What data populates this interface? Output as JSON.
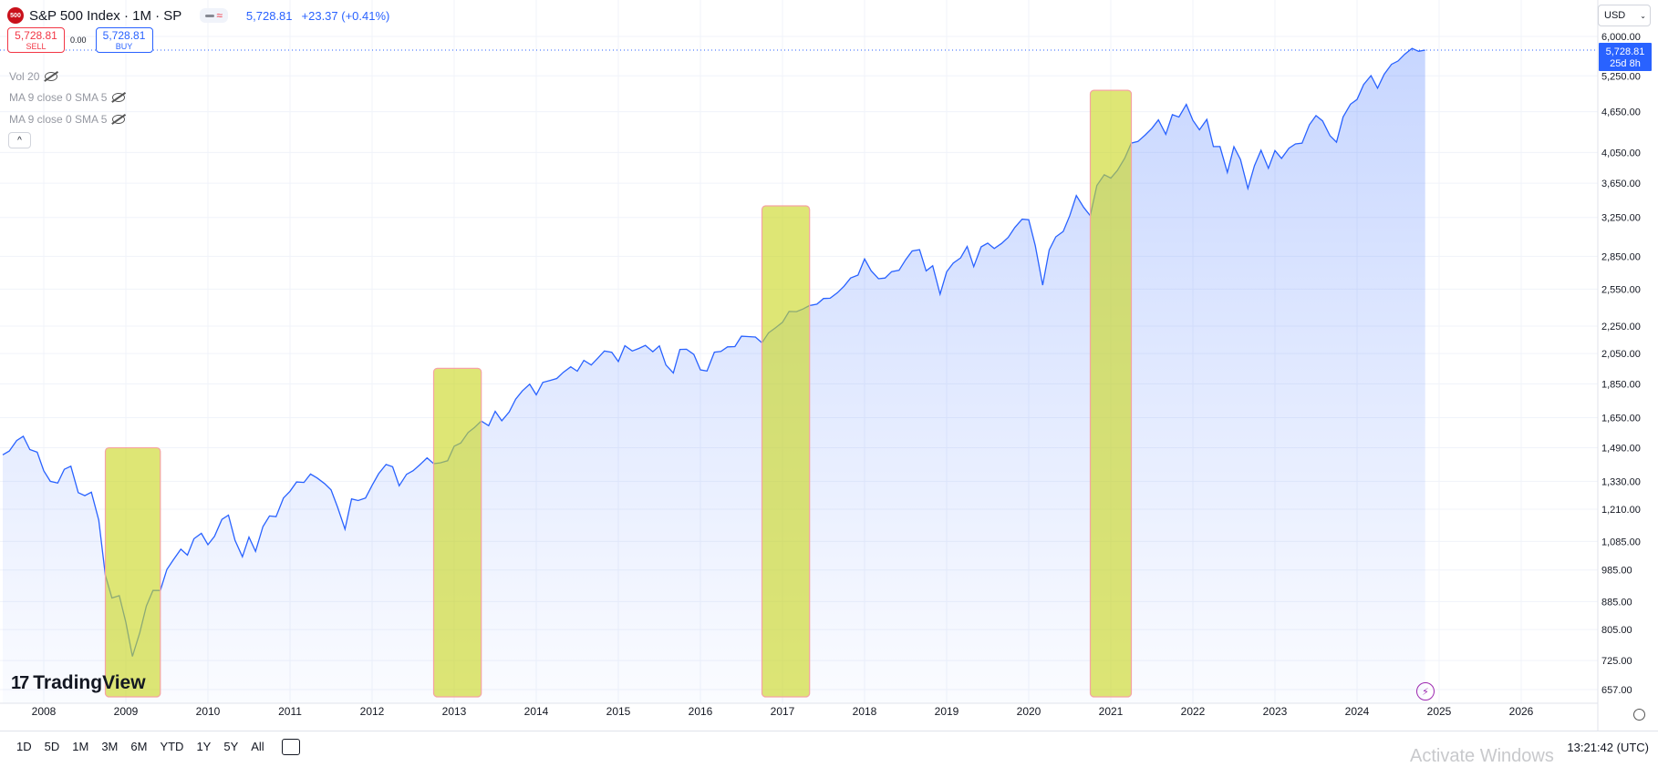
{
  "header": {
    "logo_badge": "500",
    "symbol_title": "S&P 500 Index · 1M · SP",
    "last_price": "5,728.81",
    "change": "+23.37 (+0.41%)"
  },
  "trade": {
    "sell_price": "5,728.81",
    "sell_label": "SELL",
    "spread": "0.00",
    "buy_price": "5,728.81",
    "buy_label": "BUY"
  },
  "indicators": [
    {
      "label": "Vol 20"
    },
    {
      "label": "MA 9 close 0 SMA 5"
    },
    {
      "label": "MA 9 close 0 SMA 5"
    }
  ],
  "currency": {
    "selected": "USD"
  },
  "price_label": {
    "price": "5,728.81",
    "countdown": "25d 8h"
  },
  "brand": {
    "name": "TradingView"
  },
  "bottom_bar": {
    "ranges": [
      "1D",
      "5D",
      "1M",
      "3M",
      "6M",
      "YTD",
      "1Y",
      "5Y",
      "All"
    ],
    "clock": "13:21:42 (UTC)"
  },
  "watermark": "Activate Windows",
  "colors": {
    "line": "#2962ff",
    "highlight": "#c9d620",
    "sell": "#f23645",
    "buy": "#2962ff"
  },
  "chart_data": {
    "type": "area",
    "y_scale": "log",
    "y_ticks": [
      657,
      725,
      805,
      885,
      985,
      1085,
      1210,
      1330,
      1490,
      1650,
      1850,
      2050,
      2250,
      2550,
      2850,
      3250,
      3650,
      4050,
      4650,
      5250,
      6000
    ],
    "y_tick_labels": [
      "657.00",
      "725.00",
      "805.00",
      "885.00",
      "985.00",
      "1,085.00",
      "1,210.00",
      "1,330.00",
      "1,490.00",
      "1,650.00",
      "1,850.00",
      "2,050.00",
      "2,250.00",
      "2,550.00",
      "2,850.00",
      "3,250.00",
      "3,650.00",
      "4,050.00",
      "4,650.00",
      "5,250.00",
      "6,000.00"
    ],
    "x_tick_labels": [
      "2008",
      "2009",
      "2010",
      "2011",
      "2012",
      "2013",
      "2014",
      "2015",
      "2016",
      "2017",
      "2018",
      "2019",
      "2020",
      "2021",
      "2022",
      "2023",
      "2024",
      "2025",
      "2026"
    ],
    "x_range": [
      2007.5,
      2026.9
    ],
    "series": [
      {
        "points": [
          [
            2007.5,
            1455
          ],
          [
            2007.58,
            1474
          ],
          [
            2007.67,
            1527
          ],
          [
            2007.75,
            1549
          ],
          [
            2007.83,
            1481
          ],
          [
            2007.92,
            1468
          ],
          [
            2008.0,
            1378
          ],
          [
            2008.08,
            1330
          ],
          [
            2008.17,
            1322
          ],
          [
            2008.25,
            1385
          ],
          [
            2008.33,
            1400
          ],
          [
            2008.42,
            1280
          ],
          [
            2008.5,
            1267
          ],
          [
            2008.58,
            1282
          ],
          [
            2008.67,
            1166
          ],
          [
            2008.75,
            968
          ],
          [
            2008.83,
            896
          ],
          [
            2008.92,
            903
          ],
          [
            2009.0,
            825
          ],
          [
            2009.08,
            735
          ],
          [
            2009.17,
            797
          ],
          [
            2009.25,
            872
          ],
          [
            2009.33,
            919
          ],
          [
            2009.42,
            919
          ],
          [
            2009.5,
            987
          ],
          [
            2009.58,
            1020
          ],
          [
            2009.67,
            1057
          ],
          [
            2009.75,
            1036
          ],
          [
            2009.83,
            1095
          ],
          [
            2009.92,
            1115
          ],
          [
            2010.0,
            1073
          ],
          [
            2010.08,
            1104
          ],
          [
            2010.17,
            1169
          ],
          [
            2010.25,
            1186
          ],
          [
            2010.33,
            1089
          ],
          [
            2010.42,
            1030
          ],
          [
            2010.5,
            1101
          ],
          [
            2010.58,
            1049
          ],
          [
            2010.67,
            1141
          ],
          [
            2010.75,
            1183
          ],
          [
            2010.83,
            1180
          ],
          [
            2010.92,
            1257
          ],
          [
            2011.0,
            1286
          ],
          [
            2011.08,
            1327
          ],
          [
            2011.17,
            1325
          ],
          [
            2011.25,
            1363
          ],
          [
            2011.33,
            1345
          ],
          [
            2011.42,
            1320
          ],
          [
            2011.5,
            1292
          ],
          [
            2011.58,
            1218
          ],
          [
            2011.67,
            1131
          ],
          [
            2011.75,
            1253
          ],
          [
            2011.83,
            1246
          ],
          [
            2011.92,
            1257
          ],
          [
            2012.0,
            1312
          ],
          [
            2012.08,
            1365
          ],
          [
            2012.17,
            1408
          ],
          [
            2012.25,
            1397
          ],
          [
            2012.33,
            1310
          ],
          [
            2012.42,
            1362
          ],
          [
            2012.5,
            1379
          ],
          [
            2012.58,
            1406
          ],
          [
            2012.67,
            1440
          ],
          [
            2012.75,
            1412
          ],
          [
            2012.83,
            1416
          ],
          [
            2012.92,
            1426
          ],
          [
            2013.0,
            1498
          ],
          [
            2013.08,
            1514
          ],
          [
            2013.17,
            1569
          ],
          [
            2013.25,
            1597
          ],
          [
            2013.33,
            1631
          ],
          [
            2013.42,
            1606
          ],
          [
            2013.5,
            1686
          ],
          [
            2013.58,
            1633
          ],
          [
            2013.67,
            1682
          ],
          [
            2013.75,
            1757
          ],
          [
            2013.83,
            1806
          ],
          [
            2013.92,
            1848
          ],
          [
            2014.0,
            1783
          ],
          [
            2014.08,
            1859
          ],
          [
            2014.17,
            1872
          ],
          [
            2014.25,
            1884
          ],
          [
            2014.33,
            1924
          ],
          [
            2014.42,
            1960
          ],
          [
            2014.5,
            1931
          ],
          [
            2014.58,
            2003
          ],
          [
            2014.67,
            1972
          ],
          [
            2014.75,
            2018
          ],
          [
            2014.83,
            2068
          ],
          [
            2014.92,
            2059
          ],
          [
            2015.0,
            1995
          ],
          [
            2015.08,
            2105
          ],
          [
            2015.17,
            2068
          ],
          [
            2015.25,
            2086
          ],
          [
            2015.33,
            2107
          ],
          [
            2015.42,
            2063
          ],
          [
            2015.5,
            2104
          ],
          [
            2015.58,
            1972
          ],
          [
            2015.67,
            1920
          ],
          [
            2015.75,
            2079
          ],
          [
            2015.83,
            2080
          ],
          [
            2015.92,
            2044
          ],
          [
            2016.0,
            1940
          ],
          [
            2016.08,
            1932
          ],
          [
            2016.17,
            2060
          ],
          [
            2016.25,
            2065
          ],
          [
            2016.33,
            2097
          ],
          [
            2016.42,
            2099
          ],
          [
            2016.5,
            2174
          ],
          [
            2016.58,
            2171
          ],
          [
            2016.67,
            2168
          ],
          [
            2016.75,
            2126
          ],
          [
            2016.83,
            2199
          ],
          [
            2016.92,
            2239
          ],
          [
            2017.0,
            2279
          ],
          [
            2017.08,
            2364
          ],
          [
            2017.17,
            2363
          ],
          [
            2017.25,
            2384
          ],
          [
            2017.33,
            2412
          ],
          [
            2017.42,
            2423
          ],
          [
            2017.5,
            2470
          ],
          [
            2017.58,
            2472
          ],
          [
            2017.67,
            2519
          ],
          [
            2017.75,
            2575
          ],
          [
            2017.83,
            2648
          ],
          [
            2017.92,
            2674
          ],
          [
            2018.0,
            2824
          ],
          [
            2018.08,
            2714
          ],
          [
            2018.17,
            2641
          ],
          [
            2018.25,
            2648
          ],
          [
            2018.33,
            2705
          ],
          [
            2018.42,
            2718
          ],
          [
            2018.5,
            2816
          ],
          [
            2018.58,
            2902
          ],
          [
            2018.67,
            2914
          ],
          [
            2018.75,
            2712
          ],
          [
            2018.83,
            2760
          ],
          [
            2018.92,
            2507
          ],
          [
            2019.0,
            2704
          ],
          [
            2019.08,
            2784
          ],
          [
            2019.17,
            2834
          ],
          [
            2019.25,
            2946
          ],
          [
            2019.33,
            2752
          ],
          [
            2019.42,
            2942
          ],
          [
            2019.5,
            2980
          ],
          [
            2019.58,
            2926
          ],
          [
            2019.67,
            2977
          ],
          [
            2019.75,
            3038
          ],
          [
            2019.83,
            3141
          ],
          [
            2019.92,
            3231
          ],
          [
            2020.0,
            3226
          ],
          [
            2020.08,
            2954
          ],
          [
            2020.17,
            2585
          ],
          [
            2020.25,
            2912
          ],
          [
            2020.33,
            3044
          ],
          [
            2020.42,
            3100
          ],
          [
            2020.5,
            3271
          ],
          [
            2020.58,
            3500
          ],
          [
            2020.67,
            3363
          ],
          [
            2020.75,
            3270
          ],
          [
            2020.83,
            3622
          ],
          [
            2020.92,
            3756
          ],
          [
            2021.0,
            3714
          ],
          [
            2021.08,
            3811
          ],
          [
            2021.17,
            3973
          ],
          [
            2021.25,
            4181
          ],
          [
            2021.33,
            4204
          ],
          [
            2021.42,
            4298
          ],
          [
            2021.5,
            4395
          ],
          [
            2021.58,
            4523
          ],
          [
            2021.67,
            4308
          ],
          [
            2021.75,
            4605
          ],
          [
            2021.83,
            4567
          ],
          [
            2021.92,
            4766
          ],
          [
            2022.0,
            4516
          ],
          [
            2022.08,
            4374
          ],
          [
            2022.17,
            4530
          ],
          [
            2022.25,
            4132
          ],
          [
            2022.33,
            4132
          ],
          [
            2022.42,
            3785
          ],
          [
            2022.5,
            4130
          ],
          [
            2022.58,
            3955
          ],
          [
            2022.67,
            3586
          ],
          [
            2022.75,
            3872
          ],
          [
            2022.83,
            4080
          ],
          [
            2022.92,
            3840
          ],
          [
            2023.0,
            4077
          ],
          [
            2023.08,
            3970
          ],
          [
            2023.17,
            4109
          ],
          [
            2023.25,
            4169
          ],
          [
            2023.33,
            4180
          ],
          [
            2023.42,
            4450
          ],
          [
            2023.5,
            4589
          ],
          [
            2023.58,
            4508
          ],
          [
            2023.67,
            4288
          ],
          [
            2023.75,
            4194
          ],
          [
            2023.83,
            4568
          ],
          [
            2023.92,
            4770
          ],
          [
            2024.0,
            4846
          ],
          [
            2024.08,
            5096
          ],
          [
            2024.17,
            5254
          ],
          [
            2024.25,
            5036
          ],
          [
            2024.33,
            5278
          ],
          [
            2024.42,
            5460
          ],
          [
            2024.5,
            5522
          ],
          [
            2024.58,
            5648
          ],
          [
            2024.67,
            5762
          ],
          [
            2024.75,
            5705
          ],
          [
            2024.83,
            5728.81
          ]
        ]
      }
    ],
    "highlight_regions": [
      {
        "x0": 2008.75,
        "x1": 2009.42,
        "y_top": 1490
      },
      {
        "x0": 2012.75,
        "x1": 2013.33,
        "y_top": 1950
      },
      {
        "x0": 2016.75,
        "x1": 2017.33,
        "y_top": 3380
      },
      {
        "x0": 2020.75,
        "x1": 2021.25,
        "y_top": 5000
      }
    ],
    "last_value": 5728.81
  }
}
